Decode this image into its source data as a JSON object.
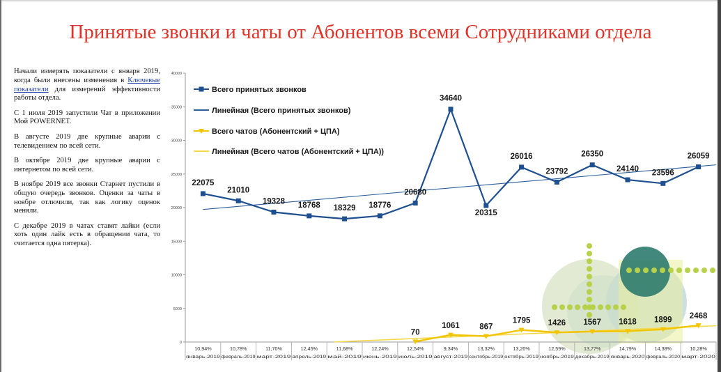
{
  "slide": {
    "title": "Принятые звонки и чаты от Абонентов всеми Сотрудниками отдела"
  },
  "notes": {
    "p1_before": "Начали измерять показатели с января 2019, когда были внесены изменения в ",
    "p1_link": "Ключевые показатели",
    "p1_after": " для измерений эффективности работы отдела.",
    "p2": "С 1 июля 2019 запустили Чат в приложении Мой POWERNET.",
    "p3": "В августе 2019 две крупные аварии с телевидением по всей сети.",
    "p4": "В октябре 2019 две крупные аварии с интернетом по всей сети.",
    "p5": "В ноябре 2019 все звонки Старнет пустили в общую очередь звонков. Оценки за чаты в ноябре отлючили, так как логику оценок меняли.",
    "p6": "С декабре 2019 в чатах ставят лайки (если хоть один лайк есть в обращении чата, то считается одна пятерка)."
  },
  "chart_data": {
    "type": "line",
    "categories": [
      "январь-2019",
      "февраль-2019",
      "март-2019",
      "апрель-2019",
      "май-2019",
      "июнь-2019",
      "июль-2019",
      "август-2019",
      "сентябрь-2019",
      "октябрь-2019",
      "ноябрь-2019",
      "декабрь-2019",
      "январь-2020",
      "февраль-2020",
      "март-2020"
    ],
    "category_percent": [
      "10,94%",
      "10,78%",
      "11,70%",
      "12,45%",
      "11,68%",
      "12,24%",
      "12,54%",
      "9,34%",
      "13,32%",
      "13,20%",
      "12,59%",
      "13,77%",
      "14,79%",
      "14,38%",
      "10,28%"
    ],
    "series": [
      {
        "name": "Всего принятых звонков",
        "color": "#1e4f8e",
        "values": [
          22075,
          21010,
          19328,
          18768,
          18329,
          18776,
          20680,
          34640,
          20315,
          26016,
          23792,
          26350,
          24140,
          23596,
          26059
        ]
      },
      {
        "name": "Всего чатов (Абонентский + ЦПА)",
        "color": "#f2c500",
        "values": [
          null,
          null,
          null,
          null,
          null,
          null,
          70,
          1061,
          867,
          1795,
          1426,
          1567,
          1618,
          1899,
          2468
        ]
      }
    ],
    "trendlines": [
      {
        "name": "Линейная (Всего принятых звонков)",
        "color": "#2b5f9e"
      },
      {
        "name": "Линейная (Всего чатов (Абонентский + ЦПА))",
        "color": "#f6d84a"
      }
    ],
    "ylim": [
      0,
      40000
    ],
    "yticks": [
      "0",
      "5000",
      "10000",
      "15000",
      "20000",
      "25000",
      "30000",
      "35000",
      "40000"
    ],
    "grid": false,
    "legend": "top-left"
  }
}
